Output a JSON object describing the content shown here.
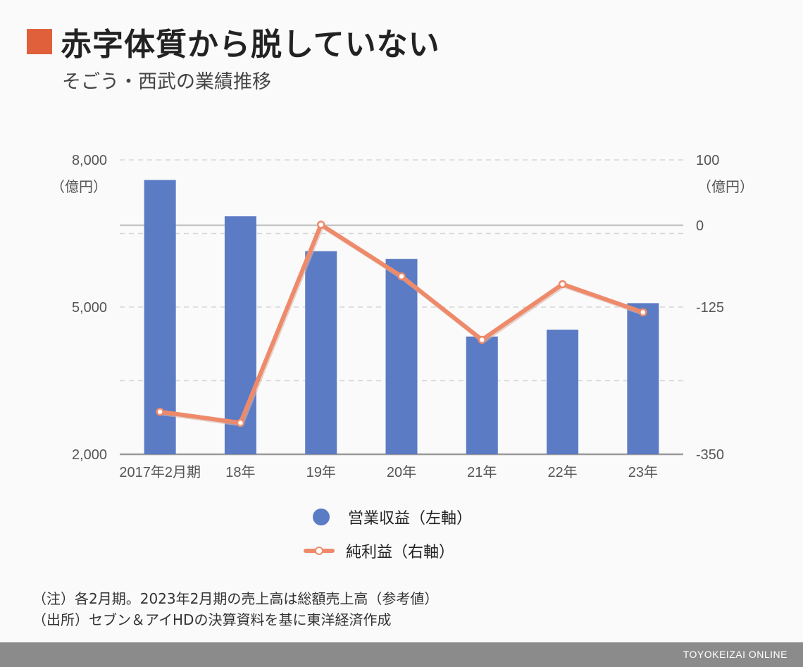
{
  "header": {
    "title": "赤字体質から脱していない",
    "subtitle": "そごう・西武の業績推移"
  },
  "colors": {
    "accent": "#e0603c",
    "bar": "#5b7bc4",
    "line": "#ee8a6a",
    "footer": "#8b8b8b"
  },
  "chart_data": {
    "type": "bar",
    "categories": [
      "2017年2月期",
      "18年",
      "19年",
      "20年",
      "21年",
      "22年",
      "23年"
    ],
    "series": [
      {
        "name": "営業収益（左軸）",
        "type": "bar",
        "axis": "left",
        "values": [
          7590,
          6850,
          6140,
          5980,
          4400,
          4540,
          5080
        ]
      },
      {
        "name": "純利益（右軸）",
        "type": "line",
        "axis": "right",
        "values": [
          -285,
          -302,
          1,
          -78,
          -175,
          -90,
          -133
        ]
      }
    ],
    "left_axis": {
      "ylim": [
        2000,
        8000
      ],
      "ticks": [
        2000,
        5000,
        8000
      ],
      "tick_labels": [
        "2,000",
        "5,000",
        "8,000"
      ],
      "unit": "（億円）"
    },
    "right_axis": {
      "ylim": [
        -350,
        100
      ],
      "ticks": [
        -350,
        -125,
        0,
        100
      ],
      "tick_labels": [
        "-350",
        "-125",
        "0",
        "100"
      ],
      "unit": "（億円）"
    },
    "grid": true,
    "legend": "bottom"
  },
  "notes": {
    "line1": "（注）各2月期。2023年2月期の売上高は総額売上高（参考値）",
    "line2": "（出所）セブン＆アイHDの決算資料を基に東洋経済作成"
  },
  "footer": {
    "brand": "TOYOKEIZAI ONLINE"
  }
}
